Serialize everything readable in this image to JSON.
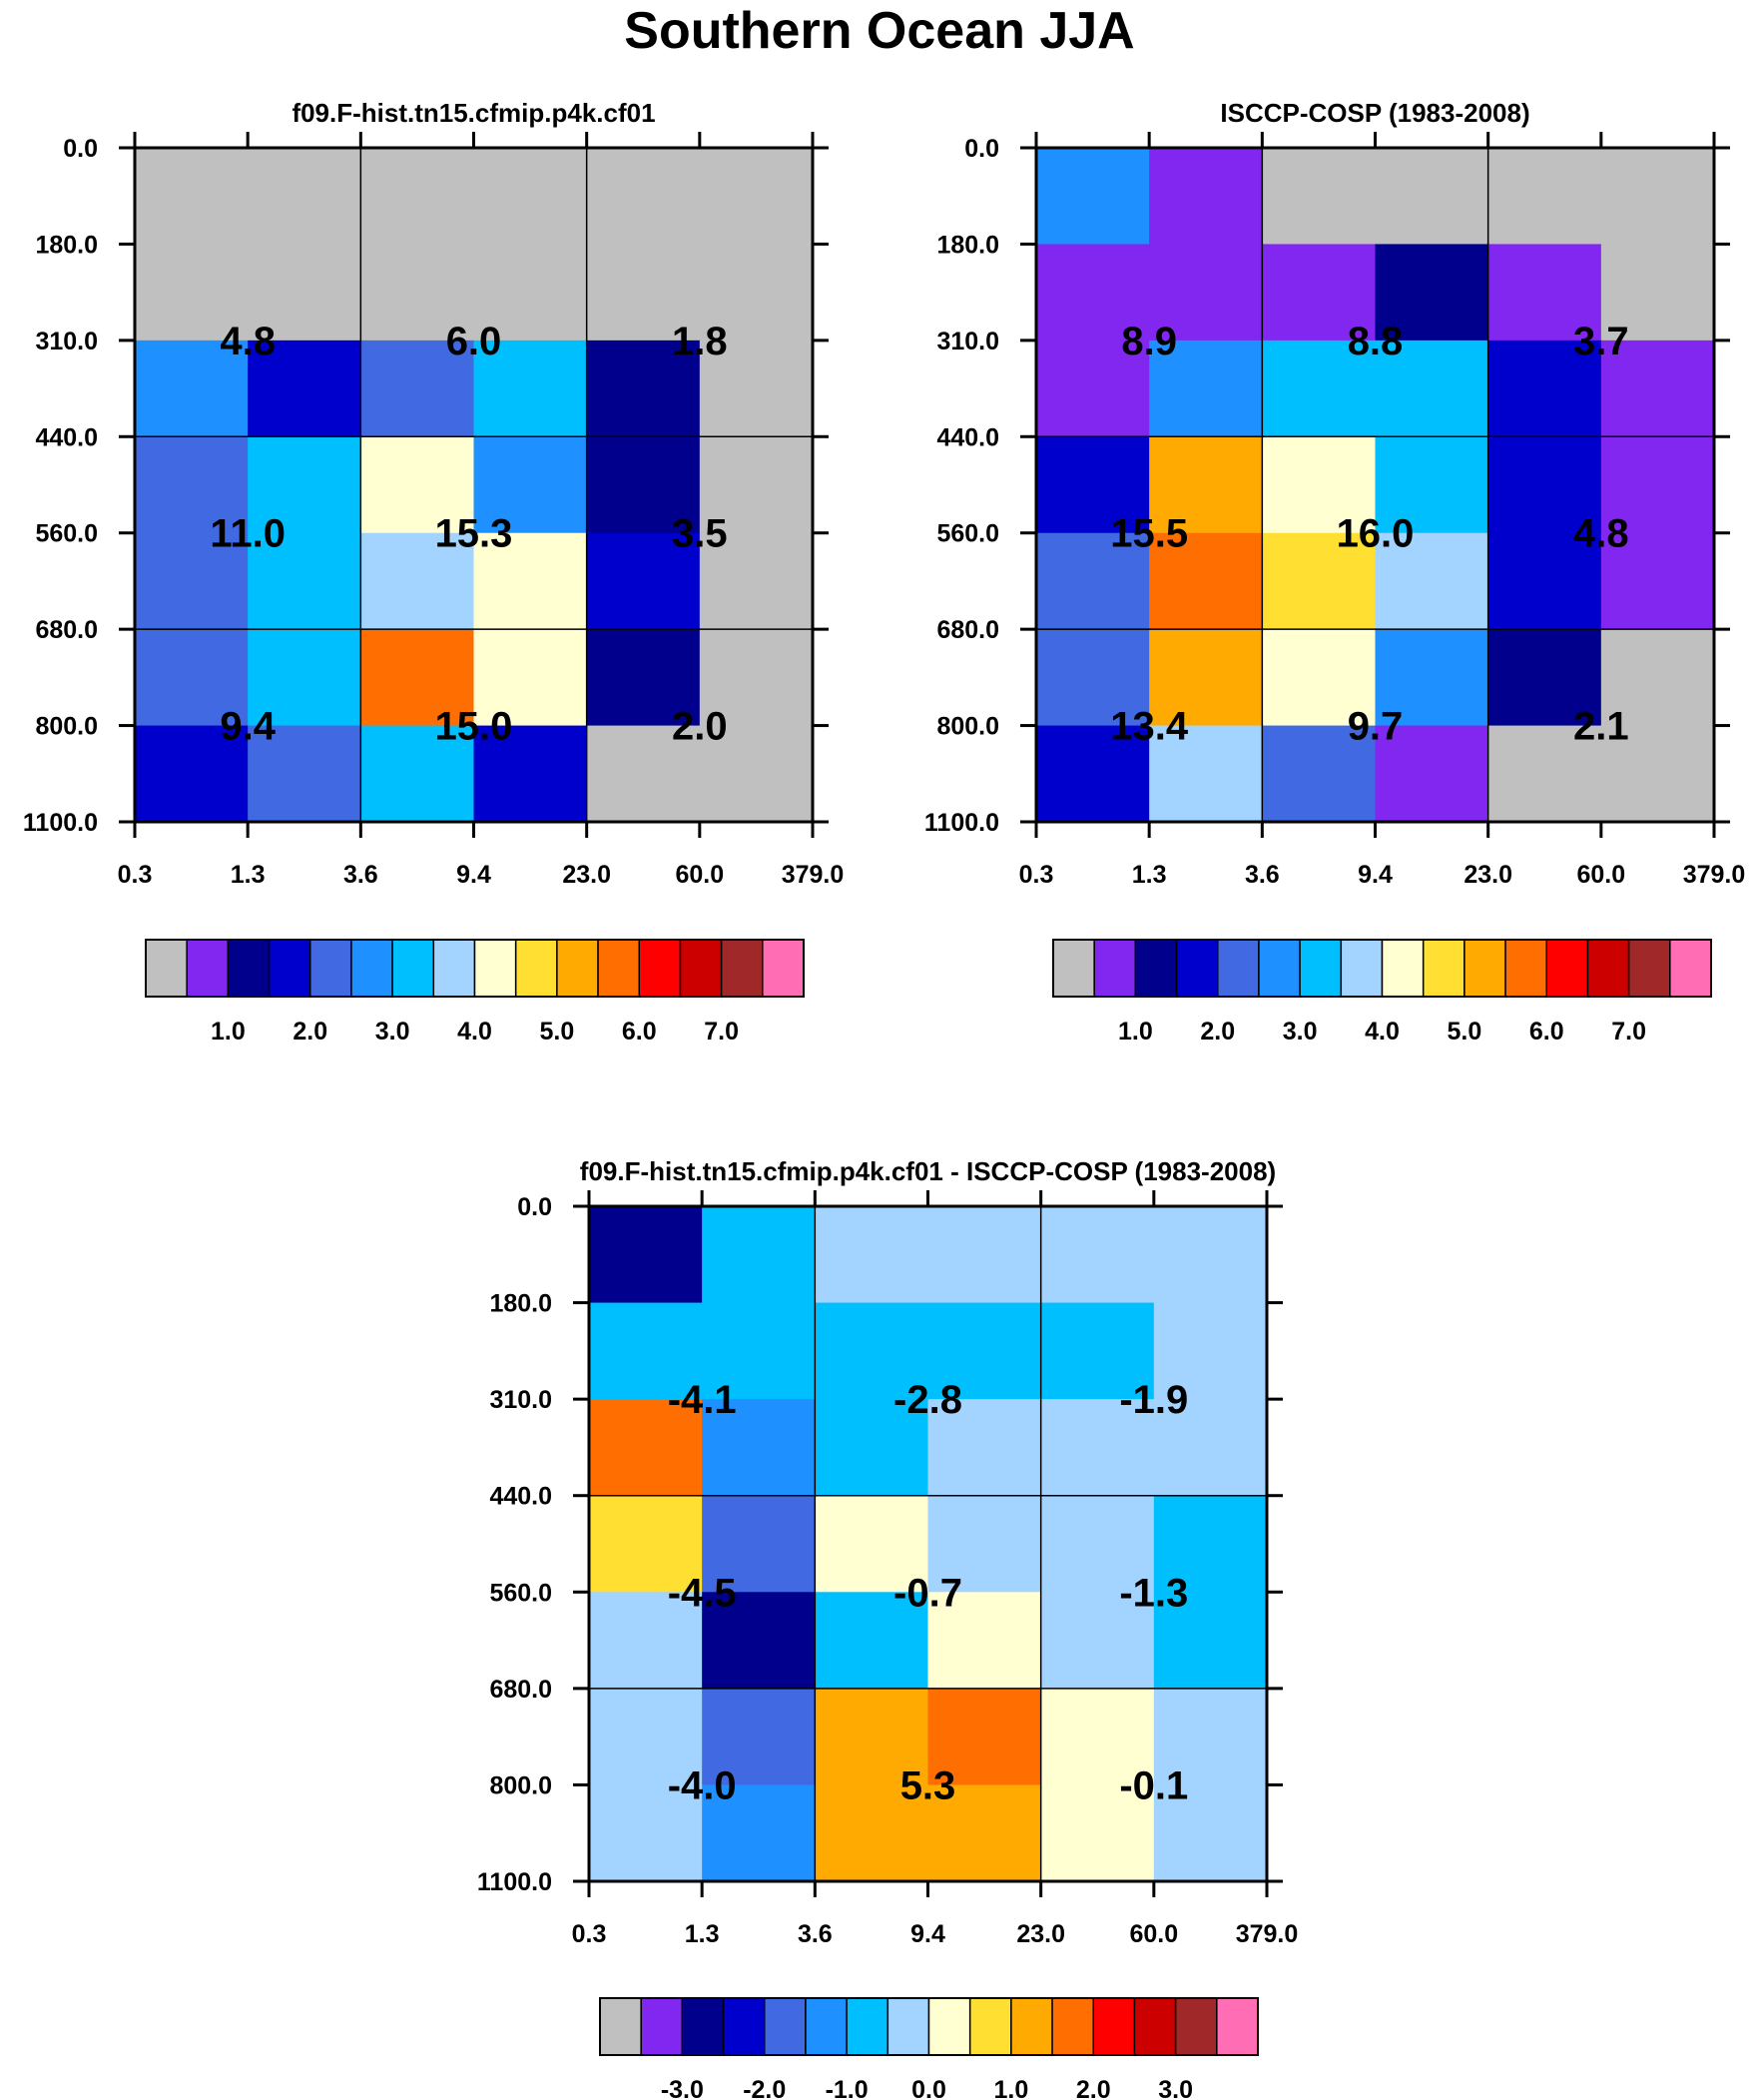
{
  "figure_title": "Southern Ocean JJA",
  "colors": {
    "missing": "#C0C0C0",
    "palette": [
      "#C0C0C0",
      "#8127F0",
      "#00008C",
      "#0000CD",
      "#4169E1",
      "#1E90FF",
      "#00BFFF",
      "#A3D3FF",
      "#FFFFD2",
      "#FFE032",
      "#FFAA00",
      "#FF6E00",
      "#FF0000",
      "#CD0000",
      "#A02828",
      "#FF6EB4"
    ],
    "frame": "#000000",
    "value_text": "#000000"
  },
  "chart_data": [
    {
      "type": "heatmap",
      "title": "f09.F-hist.tn15.cfmip.p4k.cf01",
      "x_ticks": [
        "0.3",
        "1.3",
        "3.6",
        "9.4",
        "23.0",
        "60.0",
        "379.0"
      ],
      "y_ticks": [
        "0.0",
        "180.0",
        "310.0",
        "440.0",
        "560.0",
        "680.0",
        "800.0",
        "1100.0"
      ],
      "cell_color_index": [
        [
          0,
          0,
          0,
          0,
          0,
          0
        ],
        [
          0,
          0,
          0,
          0,
          0,
          0
        ],
        [
          5,
          3,
          4,
          6,
          2,
          0
        ],
        [
          4,
          6,
          8,
          5,
          2,
          0
        ],
        [
          4,
          6,
          7,
          8,
          3,
          0
        ],
        [
          4,
          6,
          11,
          8,
          2,
          0
        ],
        [
          3,
          4,
          6,
          3,
          0,
          0
        ]
      ],
      "group_values": [
        [
          "4.8",
          "6.0",
          "1.8"
        ],
        [
          "11.0",
          "15.3",
          "3.5"
        ],
        [
          "9.4",
          "15.0",
          "2.0"
        ]
      ],
      "colorbar": {
        "color_index": [
          0,
          1,
          2,
          3,
          4,
          5,
          6,
          7,
          8,
          9,
          10,
          11,
          12,
          13,
          14,
          15
        ],
        "labels": [
          "1.0",
          "2.0",
          "3.0",
          "4.0",
          "5.0",
          "6.0",
          "7.0"
        ],
        "label_after_box": [
          2,
          4,
          6,
          8,
          10,
          12,
          14
        ]
      }
    },
    {
      "type": "heatmap",
      "title": "ISCCP-COSP (1983-2008)",
      "x_ticks": [
        "0.3",
        "1.3",
        "3.6",
        "9.4",
        "23.0",
        "60.0",
        "379.0"
      ],
      "y_ticks": [
        "0.0",
        "180.0",
        "310.0",
        "440.0",
        "560.0",
        "680.0",
        "800.0",
        "1100.0"
      ],
      "cell_color_index": [
        [
          5,
          1,
          0,
          0,
          0,
          0
        ],
        [
          1,
          1,
          1,
          2,
          1,
          0
        ],
        [
          1,
          5,
          6,
          6,
          3,
          1
        ],
        [
          3,
          10,
          8,
          6,
          3,
          1
        ],
        [
          4,
          11,
          9,
          7,
          3,
          1
        ],
        [
          4,
          10,
          8,
          5,
          2,
          0
        ],
        [
          3,
          7,
          4,
          1,
          0,
          0
        ]
      ],
      "group_values": [
        [
          "8.9",
          "8.8",
          "3.7"
        ],
        [
          "15.5",
          "16.0",
          "4.8"
        ],
        [
          "13.4",
          "9.7",
          "2.1"
        ]
      ],
      "colorbar": {
        "color_index": [
          0,
          1,
          2,
          3,
          4,
          5,
          6,
          7,
          8,
          9,
          10,
          11,
          12,
          13,
          14,
          15
        ],
        "labels": [
          "1.0",
          "2.0",
          "3.0",
          "4.0",
          "5.0",
          "6.0",
          "7.0"
        ],
        "label_after_box": [
          2,
          4,
          6,
          8,
          10,
          12,
          14
        ]
      }
    },
    {
      "type": "heatmap",
      "title": "f09.F-hist.tn15.cfmip.p4k.cf01 - ISCCP-COSP (1983-2008)",
      "x_ticks": [
        "0.3",
        "1.3",
        "3.6",
        "9.4",
        "23.0",
        "60.0",
        "379.0"
      ],
      "y_ticks": [
        "0.0",
        "180.0",
        "310.0",
        "440.0",
        "560.0",
        "680.0",
        "800.0",
        "1100.0"
      ],
      "cell_color_index": [
        [
          2,
          6,
          7,
          7,
          7,
          7
        ],
        [
          6,
          6,
          6,
          6,
          6,
          7
        ],
        [
          11,
          5,
          6,
          7,
          7,
          7
        ],
        [
          9,
          4,
          8,
          7,
          7,
          6
        ],
        [
          7,
          2,
          6,
          8,
          7,
          6
        ],
        [
          7,
          4,
          10,
          11,
          8,
          7
        ],
        [
          7,
          5,
          10,
          10,
          8,
          7
        ]
      ],
      "group_values": [
        [
          "-4.1",
          "-2.8",
          "-1.9"
        ],
        [
          "-4.5",
          "-0.7",
          "-1.3"
        ],
        [
          "-4.0",
          "5.3",
          "-0.1"
        ]
      ],
      "colorbar": {
        "color_index": [
          0,
          1,
          2,
          3,
          4,
          5,
          6,
          7,
          8,
          9,
          10,
          11,
          12,
          13,
          14,
          15
        ],
        "labels": [
          "-3.0",
          "-2.0",
          "-1.0",
          "0.0",
          "1.0",
          "2.0",
          "3.0"
        ],
        "label_after_box": [
          2,
          4,
          6,
          8,
          10,
          12,
          14
        ]
      }
    }
  ]
}
